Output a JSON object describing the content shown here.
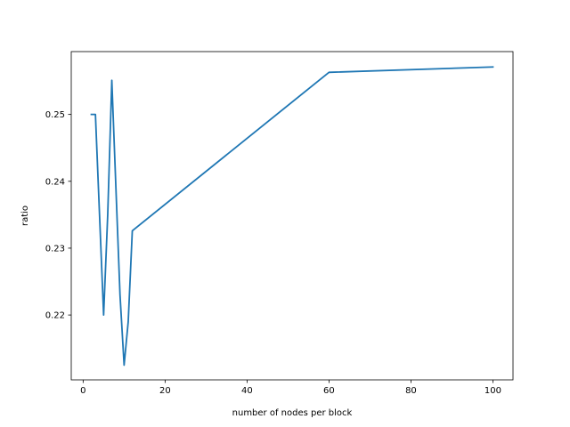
{
  "chart_data": {
    "type": "line",
    "title": "",
    "xlabel": "number of nodes per block",
    "ylabel": "ratio",
    "xlim": [
      -2.9,
      104.9
    ],
    "ylim": [
      0.2103,
      0.2594
    ],
    "xticks": [
      0,
      20,
      40,
      60,
      80,
      100
    ],
    "yticks": [
      0.22,
      0.23,
      0.24,
      0.25
    ],
    "grid": false,
    "legend": "none",
    "series": [
      {
        "color": "#1f77b4",
        "points": [
          [
            2,
            0.25
          ],
          [
            3,
            0.25
          ],
          [
            4,
            0.235
          ],
          [
            5,
            0.22
          ],
          [
            6,
            0.235
          ],
          [
            7,
            0.2551
          ],
          [
            8,
            0.239
          ],
          [
            9,
            0.223
          ],
          [
            10,
            0.2125
          ],
          [
            11,
            0.219
          ],
          [
            12,
            0.2326
          ],
          [
            60,
            0.2563
          ],
          [
            100,
            0.2571
          ]
        ]
      }
    ]
  }
}
